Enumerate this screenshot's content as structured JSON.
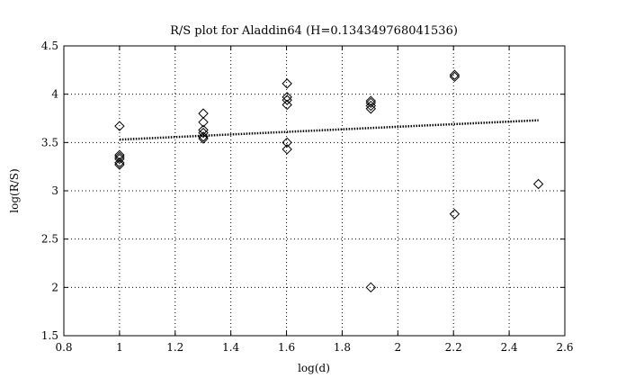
{
  "chart_data": {
    "type": "scatter",
    "title": "R/S plot for Aladdin64 (H=0.134349768041536)",
    "xlabel": "log(d)",
    "ylabel": "log(R/S)",
    "xlim": [
      0.8,
      2.6
    ],
    "ylim": [
      1.5,
      4.5
    ],
    "xticks": [
      "0.8",
      "1",
      "1.2",
      "1.4",
      "1.6",
      "1.8",
      "2",
      "2.2",
      "2.4",
      "2.6"
    ],
    "yticks": [
      "1.5",
      "2",
      "2.5",
      "3",
      "3.5",
      "4",
      "4.5"
    ],
    "grid": true,
    "series": [
      {
        "marker": "diamond",
        "points": [
          [
            1.0,
            3.67
          ],
          [
            1.0,
            3.37
          ],
          [
            1.0,
            3.35
          ],
          [
            1.0,
            3.33
          ],
          [
            1.0,
            3.29
          ],
          [
            1.0,
            3.27
          ],
          [
            1.301,
            3.8
          ],
          [
            1.301,
            3.71
          ],
          [
            1.301,
            3.63
          ],
          [
            1.301,
            3.6
          ],
          [
            1.301,
            3.56
          ],
          [
            1.301,
            3.54
          ],
          [
            1.602,
            4.11
          ],
          [
            1.602,
            3.97
          ],
          [
            1.602,
            3.94
          ],
          [
            1.602,
            3.89
          ],
          [
            1.602,
            3.5
          ],
          [
            1.602,
            3.43
          ],
          [
            1.903,
            3.93
          ],
          [
            1.903,
            3.91
          ],
          [
            1.903,
            3.88
          ],
          [
            1.903,
            3.85
          ],
          [
            1.903,
            2.0
          ],
          [
            2.204,
            4.2
          ],
          [
            2.204,
            4.18
          ],
          [
            2.204,
            2.76
          ],
          [
            2.505,
            3.07
          ]
        ]
      },
      {
        "style": "dotted-line",
        "points": [
          [
            1.0,
            3.53
          ],
          [
            2.505,
            3.73
          ]
        ]
      }
    ]
  }
}
